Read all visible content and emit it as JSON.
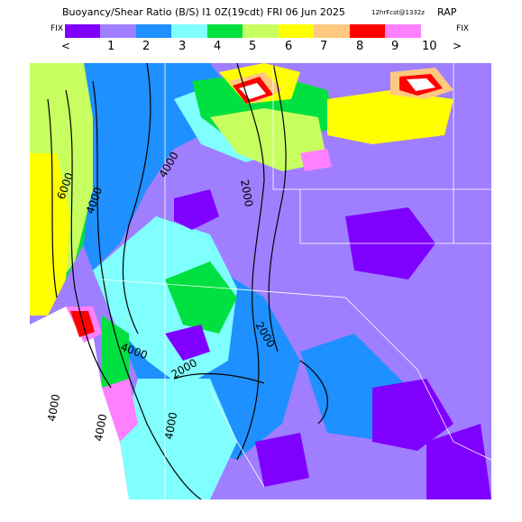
{
  "header": {
    "title": "Buoyancy/Shear Ratio (B/S)",
    "run": "I1 0Z(19cdt) FRI 06 Jun 2025",
    "forecast": "12hrFcst@1332z",
    "model": "RAP"
  },
  "legend": {
    "fix_left": "FIX",
    "fix_right": "FIX",
    "prev_arrow": "<",
    "next_arrow": ">",
    "labels": [
      "1",
      "2",
      "3",
      "4",
      "5",
      "6",
      "7",
      "8",
      "9",
      "10"
    ],
    "colors": [
      "#8000ff",
      "#9f7fff",
      "#1e90ff",
      "#80ffff",
      "#00e040",
      "#c8ff60",
      "#ffff00",
      "#ffc880",
      "#ff0000",
      "#ff80ff"
    ]
  },
  "contours": {
    "labels": [
      "6000",
      "4000",
      "4000",
      "2000",
      "2000",
      "2000",
      "4000",
      "4000",
      "4000",
      "4000"
    ]
  }
}
